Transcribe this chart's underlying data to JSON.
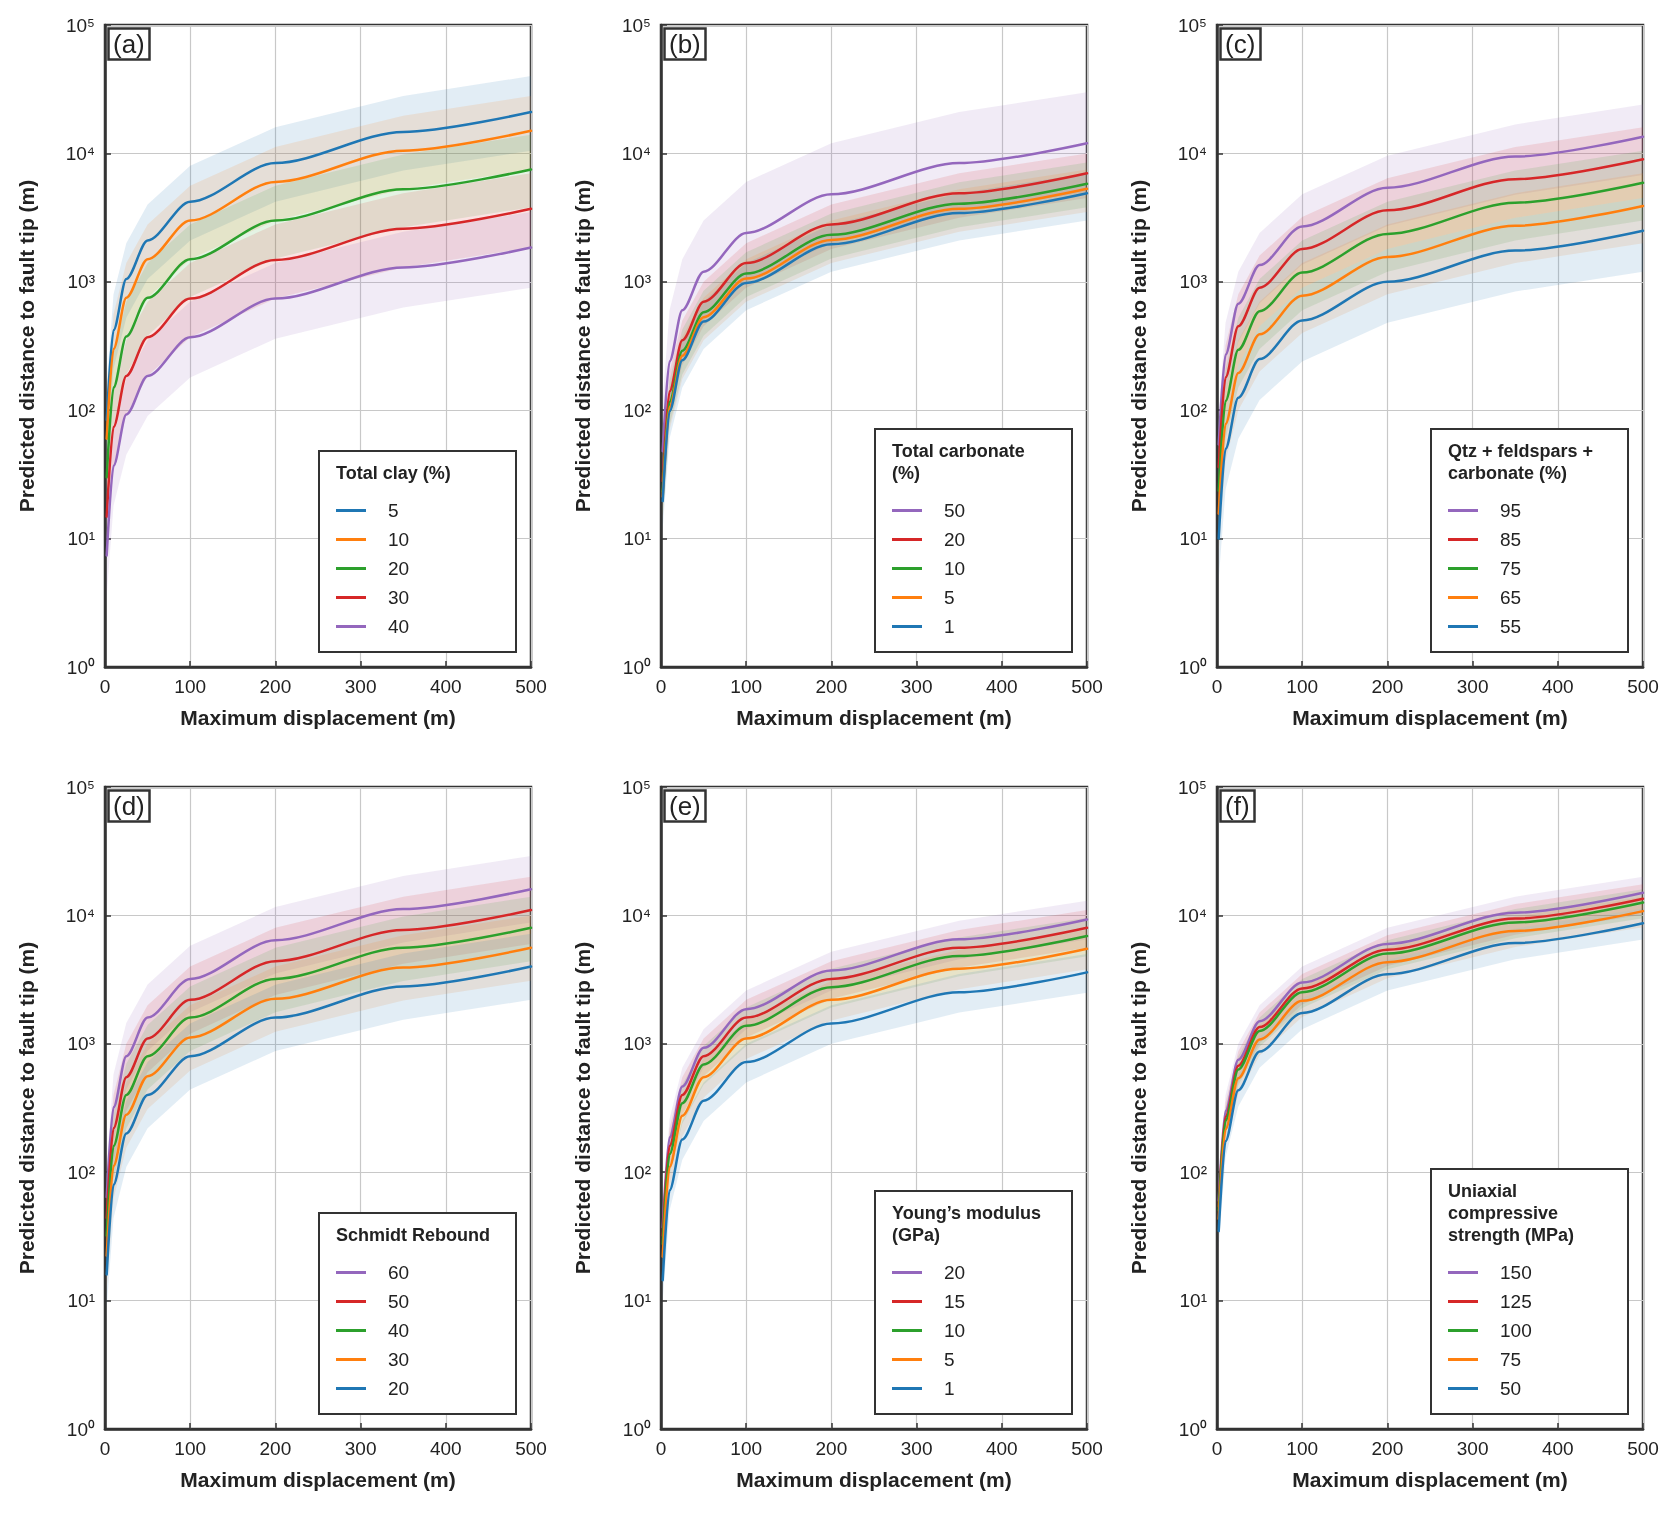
{
  "chart_data": [
    {
      "type": "line",
      "title": "(a)",
      "xlabel": "Maximum displacement (m)",
      "ylabel": "Predicted distance to fault tip (m)",
      "legend_title": "Total clay (%)",
      "legend": "bottom right",
      "grid": true,
      "log": true,
      "xlim": [
        0,
        500
      ],
      "xticks": [
        0,
        100,
        200,
        300,
        400,
        500
      ],
      "ylim": [
        1,
        100000
      ],
      "yticks": [
        {
          "value": 1,
          "label": "10⁰"
        },
        {
          "value": 10,
          "label": "10¹"
        },
        {
          "value": 100,
          "label": "10²"
        },
        {
          "value": 1000,
          "label": "10³"
        },
        {
          "value": 10000,
          "label": "10⁴"
        },
        {
          "value": 100000,
          "label": "10⁵"
        }
      ],
      "x": [
        2,
        10,
        25,
        50,
        100,
        200,
        350,
        500
      ],
      "series": [
        {
          "name": "5",
          "color": "#1f77b4",
          "values": [
            84,
            420,
            1050,
            2100,
            4200,
            8400,
            14700,
            21000
          ],
          "upper": [
            160,
            800,
            2000,
            4000,
            8000,
            16000,
            28000,
            40000
          ],
          "lower": [
            42,
            210,
            525,
            1050,
            2100,
            4200,
            7350,
            10500
          ]
        },
        {
          "name": "10",
          "color": "#ff7f0e",
          "values": [
            60,
            300,
            750,
            1500,
            3000,
            6000,
            10500,
            15000
          ],
          "upper": [
            112,
            560,
            1400,
            2800,
            5600,
            11200,
            19600,
            28000
          ],
          "lower": [
            30,
            150,
            375,
            750,
            1500,
            3000,
            5250,
            7500
          ]
        },
        {
          "name": "20",
          "color": "#2ca02c",
          "values": [
            30,
            150,
            375,
            750,
            1500,
            3000,
            5250,
            7500
          ],
          "upper": [
            56,
            280,
            700,
            1400,
            2800,
            5600,
            9800,
            14000
          ],
          "lower": [
            15.2,
            76,
            190,
            380,
            760,
            1520,
            2660,
            3800
          ]
        },
        {
          "name": "30",
          "color": "#d62728",
          "values": [
            14.8,
            74,
            185,
            370,
            740,
            1480,
            2590,
            3700
          ],
          "upper": [
            28,
            140,
            350,
            700,
            1400,
            2800,
            4900,
            7000
          ],
          "lower": [
            7.4,
            37,
            92.5,
            185,
            370,
            740,
            1295,
            1850
          ]
        },
        {
          "name": "40",
          "color": "#9467bd",
          "values": [
            7.4,
            37,
            92.5,
            185,
            370,
            740,
            1295,
            1850
          ],
          "upper": [
            14,
            70,
            175,
            350,
            700,
            1400,
            2450,
            3500
          ],
          "lower": [
            3.6,
            18,
            45,
            90,
            180,
            360,
            630,
            900
          ]
        }
      ]
    },
    {
      "type": "line",
      "title": "(b)",
      "xlabel": "Maximum displacement (m)",
      "ylabel": "Predicted distance to fault tip (m)",
      "legend_title": "Total carbonate (%)",
      "legend": "bottom right",
      "grid": true,
      "log": true,
      "xlim": [
        0,
        500
      ],
      "xticks": [
        0,
        100,
        200,
        300,
        400,
        500
      ],
      "ylim": [
        1,
        100000
      ],
      "yticks": [
        {
          "value": 1,
          "label": "10⁰"
        },
        {
          "value": 10,
          "label": "10¹"
        },
        {
          "value": 100,
          "label": "10²"
        },
        {
          "value": 1000,
          "label": "10³"
        },
        {
          "value": 10000,
          "label": "10⁴"
        },
        {
          "value": 100000,
          "label": "10⁵"
        }
      ],
      "x": [
        2,
        10,
        25,
        50,
        100,
        200,
        350,
        500
      ],
      "series": [
        {
          "name": "50",
          "color": "#9467bd",
          "values": [
            48,
            240,
            600,
            1200,
            2400,
            4800,
            8400,
            12000
          ],
          "upper": [
            120,
            600,
            1500,
            3000,
            6000,
            12000,
            21000,
            30000
          ],
          "lower": [
            20,
            100,
            250,
            500,
            1000,
            2000,
            3500,
            5000
          ]
        },
        {
          "name": "20",
          "color": "#d62728",
          "values": [
            28,
            140,
            350,
            700,
            1400,
            2800,
            4900,
            7000
          ],
          "upper": [
            40,
            200,
            500,
            1000,
            2000,
            4000,
            7000,
            10000
          ],
          "lower": [
            18,
            90,
            225,
            450,
            900,
            1800,
            3150,
            4500
          ]
        },
        {
          "name": "10",
          "color": "#2ca02c",
          "values": [
            23.2,
            116,
            290,
            580,
            1160,
            2320,
            4060,
            5800
          ],
          "upper": [
            34,
            170,
            425,
            850,
            1700,
            3400,
            5950,
            8500
          ],
          "lower": [
            15.2,
            76,
            190,
            380,
            760,
            1520,
            2660,
            3800
          ]
        },
        {
          "name": "5",
          "color": "#ff7f0e",
          "values": [
            21.2,
            106,
            265,
            530,
            1060,
            2120,
            3710,
            5300
          ],
          "upper": [
            30,
            150,
            375,
            750,
            1500,
            3000,
            5250,
            7500
          ],
          "lower": [
            14,
            70,
            175,
            350,
            700,
            1400,
            2450,
            3500
          ]
        },
        {
          "name": "1",
          "color": "#1f77b4",
          "values": [
            19.6,
            98,
            245,
            490,
            980,
            1960,
            3430,
            4900
          ],
          "upper": [
            28,
            140,
            350,
            700,
            1400,
            2800,
            4900,
            7000
          ],
          "lower": [
            12,
            60,
            150,
            300,
            600,
            1200,
            2100,
            3000
          ]
        }
      ]
    },
    {
      "type": "line",
      "title": "(c)",
      "xlabel": "Maximum displacement (m)",
      "ylabel": "Predicted distance to fault tip (m)",
      "legend_title": "Qtz + feldspars + carbonate (%)",
      "legend": "bottom right",
      "grid": true,
      "log": true,
      "xlim": [
        0,
        500
      ],
      "xticks": [
        0,
        100,
        200,
        300,
        400,
        500
      ],
      "ylim": [
        1,
        100000
      ],
      "yticks": [
        {
          "value": 1,
          "label": "10⁰"
        },
        {
          "value": 10,
          "label": "10¹"
        },
        {
          "value": 100,
          "label": "10²"
        },
        {
          "value": 1000,
          "label": "10³"
        },
        {
          "value": 10000,
          "label": "10⁴"
        },
        {
          "value": 100000,
          "label": "10⁵"
        }
      ],
      "x": [
        2,
        10,
        25,
        50,
        100,
        200,
        350,
        500
      ],
      "series": [
        {
          "name": "95",
          "color": "#9467bd",
          "values": [
            54,
            270,
            675,
            1350,
            2700,
            5400,
            9450,
            13500
          ],
          "upper": [
            96,
            480,
            1200,
            2400,
            4800,
            9600,
            16800,
            24000
          ],
          "lower": [
            27.2,
            136,
            340,
            680,
            1360,
            2720,
            4760,
            6800
          ]
        },
        {
          "name": "85",
          "color": "#d62728",
          "values": [
            36,
            180,
            450,
            900,
            1800,
            3600,
            6300,
            9000
          ],
          "upper": [
            64,
            320,
            800,
            1600,
            3200,
            6400,
            11200,
            16000
          ],
          "lower": [
            18,
            90,
            225,
            450,
            900,
            1800,
            3150,
            4500
          ]
        },
        {
          "name": "75",
          "color": "#2ca02c",
          "values": [
            23.6,
            118,
            295,
            590,
            1180,
            2360,
            4130,
            5900
          ],
          "upper": [
            42,
            210,
            525,
            1050,
            2100,
            4200,
            7350,
            10500
          ],
          "lower": [
            12,
            60,
            150,
            300,
            600,
            1200,
            2100,
            3000
          ]
        },
        {
          "name": "65",
          "color": "#ff7f0e",
          "values": [
            15.6,
            78,
            195,
            390,
            780,
            1560,
            2730,
            3900
          ],
          "upper": [
            28,
            140,
            350,
            700,
            1400,
            2800,
            4900,
            7000
          ],
          "lower": [
            8,
            40,
            100,
            200,
            400,
            800,
            1400,
            2000
          ]
        },
        {
          "name": "55",
          "color": "#1f77b4",
          "values": [
            10,
            50,
            125,
            250,
            500,
            1000,
            1750,
            2500
          ],
          "upper": [
            18,
            90,
            225,
            450,
            900,
            1800,
            3150,
            4500
          ],
          "lower": [
            4.8,
            24,
            60,
            120,
            240,
            480,
            840,
            1200
          ]
        }
      ]
    },
    {
      "type": "line",
      "title": "(d)",
      "xlabel": "Maximum displacement (m)",
      "ylabel": "Predicted distance to fault tip (m)",
      "legend_title": "Schmidt Rebound",
      "legend": "bottom right",
      "grid": true,
      "log": true,
      "xlim": [
        0,
        500
      ],
      "xticks": [
        0,
        100,
        200,
        300,
        400,
        500
      ],
      "ylim": [
        1,
        100000
      ],
      "yticks": [
        {
          "value": 1,
          "label": "10⁰"
        },
        {
          "value": 10,
          "label": "10¹"
        },
        {
          "value": 100,
          "label": "10²"
        },
        {
          "value": 1000,
          "label": "10³"
        },
        {
          "value": 10000,
          "label": "10⁴"
        },
        {
          "value": 100000,
          "label": "10⁵"
        }
      ],
      "x": [
        2,
        10,
        25,
        50,
        100,
        200,
        350,
        500
      ],
      "series": [
        {
          "name": "60",
          "color": "#9467bd",
          "values": [
            64,
            320,
            800,
            1600,
            3200,
            6400,
            11200,
            16000
          ],
          "upper": [
            116,
            580,
            1450,
            2900,
            5800,
            11600,
            20300,
            29000
          ],
          "lower": [
            35.2,
            176,
            440,
            880,
            1760,
            3520,
            6160,
            8800
          ]
        },
        {
          "name": "50",
          "color": "#d62728",
          "values": [
            44,
            220,
            550,
            1100,
            2200,
            4400,
            7700,
            11000
          ],
          "upper": [
            80,
            400,
            1000,
            2000,
            4000,
            8000,
            14000,
            20000
          ],
          "lower": [
            24,
            120,
            300,
            600,
            1200,
            2400,
            4200,
            6000
          ]
        },
        {
          "name": "40",
          "color": "#2ca02c",
          "values": [
            32,
            160,
            400,
            800,
            1600,
            3200,
            5600,
            8000
          ],
          "upper": [
            56,
            280,
            700,
            1400,
            2800,
            5600,
            9800,
            14000
          ],
          "lower": [
            17.6,
            88,
            220,
            440,
            880,
            1760,
            3080,
            4400
          ]
        },
        {
          "name": "30",
          "color": "#ff7f0e",
          "values": [
            22.4,
            112,
            280,
            560,
            1120,
            2240,
            3920,
            5600
          ],
          "upper": [
            40,
            200,
            500,
            1000,
            2000,
            4000,
            7000,
            10000
          ],
          "lower": [
            12.4,
            62,
            155,
            310,
            620,
            1240,
            2170,
            3100
          ]
        },
        {
          "name": "20",
          "color": "#1f77b4",
          "values": [
            16,
            80,
            200,
            400,
            800,
            1600,
            2800,
            4000
          ],
          "upper": [
            28.8,
            144,
            360,
            720,
            1440,
            2880,
            5040,
            7200
          ],
          "lower": [
            8.8,
            44,
            110,
            220,
            440,
            880,
            1540,
            2200
          ]
        }
      ]
    },
    {
      "type": "line",
      "title": "(e)",
      "xlabel": "Maximum displacement (m)",
      "ylabel": "Predicted distance to fault tip (m)",
      "legend_title": "Young’s modulus (GPa)",
      "legend": "bottom right",
      "grid": true,
      "log": true,
      "xlim": [
        0,
        500
      ],
      "xticks": [
        0,
        100,
        200,
        300,
        400,
        500
      ],
      "ylim": [
        1,
        100000
      ],
      "yticks": [
        {
          "value": 1,
          "label": "10⁰"
        },
        {
          "value": 10,
          "label": "10¹"
        },
        {
          "value": 100,
          "label": "10²"
        },
        {
          "value": 1000,
          "label": "10³"
        },
        {
          "value": 10000,
          "label": "10⁴"
        },
        {
          "value": 100000,
          "label": "10⁵"
        }
      ],
      "x": [
        2,
        10,
        25,
        50,
        100,
        200,
        350,
        500
      ],
      "series": [
        {
          "name": "20",
          "color": "#9467bd",
          "values": [
            37.2,
            186,
            465,
            930,
            1860,
            3720,
            6510,
            9300
          ],
          "upper": [
            52,
            260,
            650,
            1300,
            2600,
            5200,
            9100,
            13000
          ],
          "lower": [
            26,
            130,
            325,
            650,
            1300,
            2600,
            4550,
            6500
          ]
        },
        {
          "name": "15",
          "color": "#d62728",
          "values": [
            32,
            160,
            400,
            800,
            1600,
            3200,
            5600,
            8000
          ],
          "upper": [
            44,
            220,
            550,
            1100,
            2200,
            4400,
            7700,
            11000
          ],
          "lower": [
            22.4,
            112,
            280,
            560,
            1120,
            2240,
            3920,
            5600
          ]
        },
        {
          "name": "10",
          "color": "#2ca02c",
          "values": [
            27.6,
            138,
            345,
            690,
            1380,
            2760,
            4830,
            6900
          ],
          "upper": [
            38.4,
            192,
            480,
            960,
            1920,
            3840,
            6720,
            9600
          ],
          "lower": [
            19.2,
            96,
            240,
            480,
            960,
            1920,
            3360,
            4800
          ]
        },
        {
          "name": "5",
          "color": "#ff7f0e",
          "values": [
            22,
            110,
            275,
            550,
            1100,
            2200,
            3850,
            5500
          ],
          "upper": [
            30.8,
            154,
            385,
            770,
            1540,
            3080,
            5390,
            7700
          ],
          "lower": [
            15.2,
            76,
            190,
            380,
            760,
            1520,
            2660,
            3800
          ]
        },
        {
          "name": "1",
          "color": "#1f77b4",
          "values": [
            14.4,
            72,
            180,
            360,
            720,
            1440,
            2520,
            3600
          ],
          "upper": [
            20,
            100,
            250,
            500,
            1000,
            2000,
            3500,
            5000
          ],
          "lower": [
            10,
            50,
            125,
            250,
            500,
            1000,
            1750,
            2500
          ]
        }
      ]
    },
    {
      "type": "line",
      "title": "(f)",
      "xlabel": "Maximum displacement (m)",
      "ylabel": "Predicted distance to fault tip (m)",
      "legend_title": "Uniaxial compressive strength (MPa)",
      "legend": "bottom right",
      "grid": true,
      "log": true,
      "xlim": [
        0,
        500
      ],
      "xticks": [
        0,
        100,
        200,
        300,
        400,
        500
      ],
      "ylim": [
        1,
        100000
      ],
      "yticks": [
        {
          "value": 1,
          "label": "10⁰"
        },
        {
          "value": 10,
          "label": "10¹"
        },
        {
          "value": 100,
          "label": "10²"
        },
        {
          "value": 1000,
          "label": "10³"
        },
        {
          "value": 10000,
          "label": "10⁴"
        },
        {
          "value": 100000,
          "label": "10⁵"
        }
      ],
      "x": [
        2,
        10,
        25,
        50,
        100,
        200,
        350,
        500
      ],
      "series": [
        {
          "name": "150",
          "color": "#9467bd",
          "values": [
            60,
            300,
            750,
            1500,
            3000,
            6000,
            10500,
            15000
          ],
          "upper": [
            80,
            400,
            1000,
            2000,
            4000,
            8000,
            14000,
            20000
          ],
          "lower": [
            45.2,
            226,
            565,
            1130,
            2260,
            4520,
            7910,
            11300
          ]
        },
        {
          "name": "125",
          "color": "#d62728",
          "values": [
            54,
            270,
            675,
            1350,
            2700,
            5400,
            9450,
            13500
          ],
          "upper": [
            70,
            350,
            875,
            1750,
            3500,
            7000,
            12250,
            17500
          ],
          "lower": [
            40.4,
            202,
            505,
            1010,
            2020,
            4040,
            7070,
            10100
          ]
        },
        {
          "name": "100",
          "color": "#2ca02c",
          "values": [
            50.4,
            252,
            630,
            1260,
            2520,
            5040,
            8820,
            12600
          ],
          "upper": [
            64,
            320,
            800,
            1600,
            3200,
            6400,
            11200,
            16000
          ],
          "lower": [
            38,
            190,
            475,
            950,
            1900,
            3800,
            6650,
            9500
          ]
        },
        {
          "name": "75",
          "color": "#ff7f0e",
          "values": [
            43.2,
            216,
            540,
            1080,
            2160,
            4320,
            7560,
            10800
          ],
          "upper": [
            56,
            280,
            700,
            1400,
            2800,
            5600,
            9800,
            14000
          ],
          "lower": [
            32.4,
            162,
            405,
            810,
            1620,
            3240,
            5670,
            8100
          ]
        },
        {
          "name": "50",
          "color": "#1f77b4",
          "values": [
            34.8,
            174,
            435,
            870,
            1740,
            3480,
            6090,
            8700
          ],
          "upper": [
            45.2,
            226,
            565,
            1130,
            2260,
            4520,
            7910,
            11300
          ],
          "lower": [
            26,
            130,
            325,
            650,
            1300,
            2600,
            4550,
            6500
          ]
        }
      ]
    }
  ]
}
